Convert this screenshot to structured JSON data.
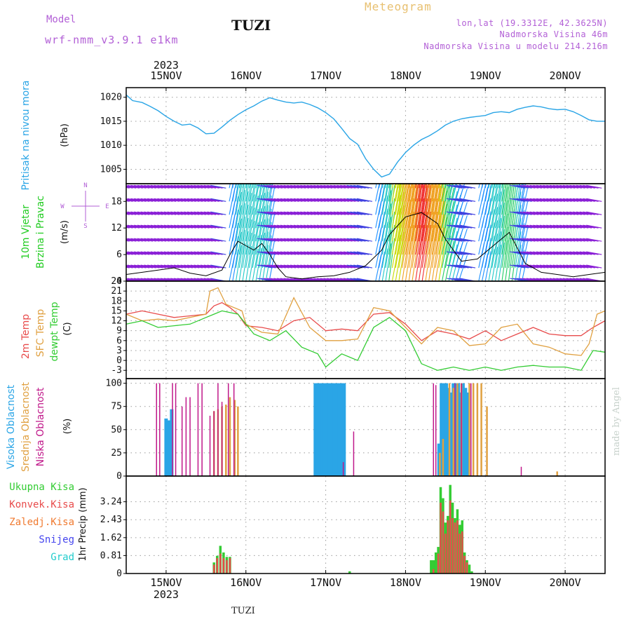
{
  "header": {
    "model_label": "Model",
    "model_name": "wrf-nmm_v3.9.1  e1km",
    "station": "TUZI",
    "title": "Meteogram",
    "coords": "lon,lat (19.3312E, 42.3625N)",
    "elevation": "Nadmorska Visina 46m",
    "model_elevation": "Nadmorska Visina u modelu 214.216m"
  },
  "footer": {
    "station": "TUZI",
    "credit": "made by Angel"
  },
  "colors": {
    "pressure": "#2aa5e6",
    "wind_label": "#22cc22",
    "temp2m": "#e84b4b",
    "sfc": "#e0a040",
    "dewpt": "#33cc33",
    "cloud_high": "#2aa5e6",
    "cloud_mid": "#e0a040",
    "cloud_low": "#c0188a",
    "precip_total": "#33cc33",
    "precip_conv": "#e84b4b",
    "precip_frz": "#f07a30",
    "snow": "#4444ee",
    "graupel": "#22cccc"
  },
  "chart_data": [
    {
      "type": "line",
      "panel": "pressure",
      "ylabel_lines": [
        "Pritisak na nivou mora",
        "(hPa)"
      ],
      "ylim": [
        1002,
        1022
      ],
      "yticks": [
        1005,
        1010,
        1015,
        1020
      ],
      "x_days": [
        "15NOV",
        "16NOV",
        "17NOV",
        "18NOV",
        "19NOV",
        "20NOV"
      ],
      "x_year": "2023",
      "xlim_days": [
        -0.5,
        5.5
      ],
      "series": [
        {
          "x": [
            -0.5,
            -0.42,
            -0.3,
            -0.2,
            -0.1,
            0.0,
            0.1,
            0.2,
            0.3,
            0.4,
            0.5,
            0.6,
            0.7,
            0.8,
            0.9,
            1.0,
            1.1,
            1.2,
            1.3,
            1.4,
            1.5,
            1.6,
            1.7,
            1.8,
            1.9,
            2.0,
            2.1,
            2.2,
            2.3,
            2.4,
            2.5,
            2.6,
            2.7,
            2.8,
            2.9,
            3.0,
            3.1,
            3.2,
            3.3,
            3.4,
            3.5,
            3.6,
            3.7,
            3.8,
            3.9,
            4.0,
            4.1,
            4.2,
            4.3,
            4.4,
            4.5,
            4.6,
            4.7,
            4.8,
            4.9,
            5.0,
            5.1,
            5.2,
            5.3,
            5.4,
            5.5
          ],
          "values": [
            1020.5,
            1019.3,
            1018.9,
            1018.1,
            1017.2,
            1016.0,
            1015.0,
            1014.2,
            1014.4,
            1013.6,
            1012.4,
            1012.5,
            1013.8,
            1015.2,
            1016.4,
            1017.4,
            1018.2,
            1019.2,
            1019.9,
            1019.4,
            1019.0,
            1018.8,
            1019.0,
            1018.5,
            1017.8,
            1016.8,
            1015.5,
            1013.5,
            1011.4,
            1010.2,
            1007.2,
            1005.0,
            1003.4,
            1004.0,
            1006.5,
            1008.5,
            1010.0,
            1011.2,
            1012.0,
            1013.0,
            1014.2,
            1015.0,
            1015.5,
            1015.8,
            1016.0,
            1016.2,
            1016.8,
            1017.0,
            1016.8,
            1017.5,
            1017.9,
            1018.2,
            1018.0,
            1017.6,
            1017.4,
            1017.5,
            1017.0,
            1016.2,
            1015.3,
            1015.0,
            1015.0
          ]
        }
      ]
    },
    {
      "type": "line",
      "panel": "wind",
      "ylabel_lines": [
        "10m Vjetar",
        "Brzina i Pravac",
        "(m/s)"
      ],
      "compass": [
        "N",
        "W",
        "E",
        "S"
      ],
      "ylim": [
        0,
        22
      ],
      "yticks": [
        0,
        6,
        12,
        18
      ],
      "barb_rows": [
        0,
        3,
        6,
        9,
        12,
        15,
        18,
        21
      ],
      "speed_x": [
        -0.5,
        -0.3,
        -0.1,
        0.1,
        0.3,
        0.5,
        0.7,
        0.8,
        0.9,
        1.0,
        1.1,
        1.2,
        1.3,
        1.4,
        1.5,
        1.7,
        1.9,
        2.1,
        2.3,
        2.5,
        2.7,
        2.8,
        3.0,
        3.2,
        3.4,
        3.5,
        3.6,
        3.7,
        3.9,
        4.1,
        4.3,
        4.5,
        4.7,
        4.9,
        5.1,
        5.3,
        5.5
      ],
      "speed_values": [
        1.5,
        2.0,
        2.5,
        3.0,
        1.8,
        1.2,
        2.5,
        6.0,
        9.0,
        8.0,
        7.0,
        8.5,
        6.0,
        3.0,
        1.0,
        0.5,
        1.0,
        1.2,
        2.0,
        3.5,
        7.0,
        10.5,
        14.5,
        15.5,
        13.0,
        9.5,
        7.0,
        4.5,
        5.0,
        8.0,
        11.0,
        4.0,
        2.0,
        1.5,
        1.0,
        1.5,
        2.0
      ]
    },
    {
      "type": "line",
      "panel": "temperature",
      "ylabel_lines": [
        "2m Temp",
        "SFC Temp",
        "dewpt Temp",
        "(C)"
      ],
      "ylim": [
        -5.5,
        24
      ],
      "yticks": [
        -3,
        0,
        3,
        6,
        9,
        12,
        15,
        18,
        21,
        24
      ],
      "series": [
        {
          "name": "2m Temp",
          "x": [
            -0.5,
            -0.3,
            -0.1,
            0.1,
            0.3,
            0.5,
            0.6,
            0.7,
            0.8,
            0.9,
            1.0,
            1.2,
            1.4,
            1.6,
            1.8,
            2.0,
            2.2,
            2.4,
            2.6,
            2.8,
            3.0,
            3.2,
            3.4,
            3.6,
            3.8,
            4.0,
            4.2,
            4.4,
            4.6,
            4.8,
            5.0,
            5.2,
            5.35,
            5.5
          ],
          "values": [
            14,
            15,
            14,
            13,
            13.5,
            14,
            16.5,
            17.5,
            16,
            14,
            10.5,
            10,
            9,
            12,
            13,
            9,
            9.5,
            9,
            14,
            14.5,
            11,
            6,
            9,
            8,
            6.5,
            9,
            6,
            8,
            10,
            8,
            7.5,
            7.5,
            10,
            12
          ]
        },
        {
          "name": "SFC Temp",
          "x": [
            -0.5,
            -0.3,
            -0.1,
            0.1,
            0.3,
            0.5,
            0.55,
            0.65,
            0.75,
            0.85,
            0.95,
            1.0,
            1.2,
            1.4,
            1.6,
            1.8,
            2.0,
            2.2,
            2.4,
            2.6,
            2.8,
            3.0,
            3.2,
            3.4,
            3.6,
            3.8,
            4.0,
            4.2,
            4.4,
            4.6,
            4.8,
            5.0,
            5.2,
            5.3,
            5.4,
            5.5
          ],
          "values": [
            14,
            12,
            12.5,
            12,
            13,
            14,
            21,
            22,
            17,
            16,
            15,
            11,
            8.5,
            8,
            19,
            10,
            6,
            6,
            6.5,
            16,
            15,
            10,
            5,
            10,
            9,
            4.5,
            5,
            10,
            11,
            5,
            4,
            2,
            1.5,
            5,
            14,
            15
          ]
        },
        {
          "name": "dewpt Temp",
          "x": [
            -0.5,
            -0.3,
            -0.1,
            0.1,
            0.3,
            0.5,
            0.6,
            0.7,
            0.8,
            0.9,
            1.0,
            1.1,
            1.3,
            1.5,
            1.7,
            1.9,
            2.0,
            2.2,
            2.4,
            2.6,
            2.8,
            3.0,
            3.2,
            3.4,
            3.6,
            3.8,
            4.0,
            4.2,
            4.4,
            4.6,
            4.8,
            5.0,
            5.2,
            5.35,
            5.5
          ],
          "values": [
            11,
            12,
            10,
            10.5,
            11,
            13,
            14,
            15,
            14.5,
            14,
            11,
            8,
            6,
            9,
            4,
            2,
            -2,
            2,
            0,
            10,
            13,
            9,
            -1,
            -3,
            -2,
            -3,
            -2,
            -3,
            -2,
            -1.5,
            -2,
            -2,
            -3,
            3,
            2.5
          ]
        }
      ]
    },
    {
      "type": "bar",
      "panel": "cloud",
      "ylabel_lines": [
        "Visoka Oblacnost",
        "Srednja Oblacnost",
        "Niska Oblacnost",
        "(%)"
      ],
      "ylim": [
        0,
        105
      ],
      "yticks": [
        0,
        25,
        50,
        75,
        100
      ],
      "series": [
        {
          "name": "Visoka Oblacnost",
          "x": [
            0.0,
            0.03,
            0.07,
            1.87,
            1.9,
            1.93,
            1.96,
            1.99,
            2.02,
            2.05,
            2.08,
            2.11,
            2.14,
            2.17,
            2.2,
            2.23,
            3.42,
            3.45,
            3.48,
            3.51,
            3.54,
            3.57,
            3.6,
            3.63,
            3.66,
            3.69,
            3.72,
            3.75,
            3.78
          ],
          "values": [
            62,
            60,
            72,
            100,
            100,
            100,
            100,
            100,
            100,
            100,
            100,
            100,
            100,
            100,
            100,
            100,
            35,
            100,
            100,
            100,
            95,
            90,
            100,
            100,
            100,
            90,
            100,
            95,
            90
          ]
        },
        {
          "name": "Srednja Oblacnost",
          "x": [
            0.6,
            0.65,
            0.7,
            0.75,
            0.8,
            0.86,
            0.9,
            3.43,
            3.47,
            3.55,
            3.6,
            3.65,
            3.7,
            3.8,
            3.85,
            3.9,
            3.95,
            4.02,
            4.9
          ],
          "values": [
            70,
            72,
            75,
            77,
            85,
            82,
            75,
            25,
            40,
            100,
            95,
            100,
            100,
            100,
            100,
            100,
            100,
            75,
            5
          ]
        },
        {
          "name": "Niska Oblacnost",
          "x": [
            -0.12,
            -0.08,
            0.08,
            0.12,
            0.2,
            0.25,
            0.3,
            0.4,
            0.45,
            0.55,
            0.6,
            0.65,
            0.7,
            0.78,
            0.85,
            2.22,
            2.35,
            3.35,
            3.38,
            3.62,
            3.7,
            3.82,
            4.45
          ],
          "values": [
            100,
            100,
            100,
            100,
            75,
            85,
            85,
            100,
            100,
            65,
            70,
            100,
            80,
            100,
            100,
            15,
            48,
            100,
            98,
            100,
            100,
            100,
            10
          ]
        }
      ]
    },
    {
      "type": "bar",
      "panel": "precip",
      "legend": [
        "Ukupna Kisa",
        "Konvek.Kisa",
        "Zaledj.Kisa",
        "Snijeg",
        "Grad"
      ],
      "ylabel_lines": [
        "1hr Precip (mm)"
      ],
      "ylim": [
        0,
        4.4
      ],
      "yticks": [
        0,
        0.81,
        1.62,
        2.43,
        3.24
      ],
      "series": [
        {
          "name": "Ukupna Kisa",
          "x": [
            0.6,
            0.64,
            0.68,
            0.72,
            0.76,
            0.8,
            2.3,
            3.32,
            3.35,
            3.38,
            3.41,
            3.44,
            3.47,
            3.5,
            3.53,
            3.56,
            3.59,
            3.62,
            3.65,
            3.68,
            3.71,
            3.74,
            3.77,
            3.8,
            3.83
          ],
          "values": [
            0.5,
            0.8,
            1.25,
            0.95,
            0.75,
            0.75,
            0.1,
            0.6,
            0.6,
            0.95,
            1.2,
            3.9,
            3.4,
            2.3,
            2.6,
            4.0,
            3.2,
            2.5,
            2.9,
            2.2,
            2.4,
            0.95,
            0.6,
            0.4,
            0.1
          ]
        },
        {
          "name": "Konvek.Kisa",
          "x": [
            0.6,
            0.64,
            0.68,
            0.72,
            0.76,
            0.8,
            3.35,
            3.41,
            3.44,
            3.47,
            3.5,
            3.53,
            3.56,
            3.59,
            3.62,
            3.65,
            3.68,
            3.71,
            3.74,
            3.77
          ],
          "values": [
            0.4,
            0.7,
            0.9,
            0.7,
            0.6,
            0.7,
            0.2,
            0.9,
            3.2,
            2.8,
            1.8,
            2.4,
            3.3,
            2.5,
            2.3,
            2.4,
            1.8,
            1.9,
            0.8,
            0.5
          ]
        }
      ]
    }
  ]
}
